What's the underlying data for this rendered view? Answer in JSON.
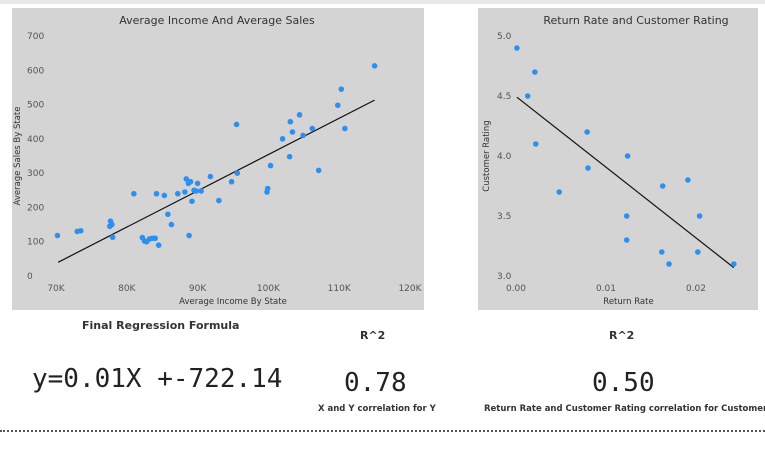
{
  "chart_data": [
    {
      "type": "scatter",
      "title": "Average Income And Average Sales",
      "xlabel": "Average Income By State",
      "ylabel": "Average Sales By State",
      "xlim": [
        70000,
        120000
      ],
      "ylim": [
        0,
        700
      ],
      "xticks": [
        70000,
        80000,
        90000,
        100000,
        110000,
        120000
      ],
      "xtick_labels": [
        "70K",
        "80K",
        "90K",
        "100K",
        "110K",
        "120K"
      ],
      "yticks": [
        0,
        100,
        200,
        300,
        400,
        500,
        600,
        700
      ],
      "ytick_labels": [
        "0",
        "100",
        "200",
        "300",
        "400",
        "500",
        "600",
        "700"
      ],
      "grid": false,
      "point_color": "#2f8ff0",
      "trendline": {
        "x": [
          70300,
          115000
        ],
        "y": [
          40,
          513
        ]
      },
      "points": [
        [
          70200,
          118
        ],
        [
          73000,
          130
        ],
        [
          73500,
          132
        ],
        [
          77600,
          145
        ],
        [
          77700,
          160
        ],
        [
          77900,
          150
        ],
        [
          78000,
          113
        ],
        [
          81000,
          240
        ],
        [
          82200,
          112
        ],
        [
          82500,
          102
        ],
        [
          82800,
          100
        ],
        [
          83200,
          108
        ],
        [
          83600,
          110
        ],
        [
          84000,
          110
        ],
        [
          84200,
          240
        ],
        [
          84500,
          90
        ],
        [
          85300,
          235
        ],
        [
          85800,
          180
        ],
        [
          86300,
          150
        ],
        [
          87200,
          240
        ],
        [
          88200,
          245
        ],
        [
          88400,
          283
        ],
        [
          88700,
          270
        ],
        [
          88800,
          118
        ],
        [
          89000,
          275
        ],
        [
          89200,
          218
        ],
        [
          89500,
          250
        ],
        [
          89800,
          248
        ],
        [
          90000,
          270
        ],
        [
          90500,
          248
        ],
        [
          91800,
          290
        ],
        [
          93000,
          220
        ],
        [
          94800,
          275
        ],
        [
          95500,
          442
        ],
        [
          95600,
          300
        ],
        [
          99800,
          245
        ],
        [
          99900,
          255
        ],
        [
          100300,
          322
        ],
        [
          102000,
          400
        ],
        [
          103000,
          348
        ],
        [
          103100,
          450
        ],
        [
          103400,
          420
        ],
        [
          104400,
          470
        ],
        [
          104900,
          410
        ],
        [
          106200,
          430
        ],
        [
          107100,
          308
        ],
        [
          109800,
          498
        ],
        [
          110300,
          545
        ],
        [
          110800,
          430
        ],
        [
          115000,
          613
        ]
      ]
    },
    {
      "type": "scatter",
      "title": "Return Rate and Customer Rating",
      "xlabel": "Return Rate",
      "ylabel": "Customer Rating",
      "xlim": [
        0,
        0.025
      ],
      "ylim": [
        3.0,
        5.0
      ],
      "xticks": [
        0,
        0.01,
        0.02
      ],
      "xtick_labels": [
        "0.00",
        "0.01",
        "0.02"
      ],
      "yticks": [
        3.0,
        3.5,
        4.0,
        4.5,
        5.0
      ],
      "ytick_labels": [
        "3.0",
        "3.5",
        "4.0",
        "4.5",
        "5.0"
      ],
      "grid": false,
      "point_color": "#2f8ff0",
      "trendline": {
        "x": [
          0.0001,
          0.0242
        ],
        "y": [
          4.49,
          3.07
        ]
      },
      "points": [
        [
          0.0001,
          4.9
        ],
        [
          0.0013,
          4.5
        ],
        [
          0.0021,
          4.7
        ],
        [
          0.0022,
          4.1
        ],
        [
          0.0048,
          3.7
        ],
        [
          0.0079,
          4.2
        ],
        [
          0.008,
          3.9
        ],
        [
          0.0124,
          4.0
        ],
        [
          0.0123,
          3.5
        ],
        [
          0.0123,
          3.3
        ],
        [
          0.0163,
          3.75
        ],
        [
          0.0162,
          3.2
        ],
        [
          0.017,
          3.1
        ],
        [
          0.0191,
          3.8
        ],
        [
          0.0204,
          3.5
        ],
        [
          0.0202,
          3.2
        ],
        [
          0.0242,
          3.1
        ]
      ]
    }
  ],
  "cards": {
    "formula_label": "Final Regression Formula",
    "formula_value": "y=0.01X +-722.14",
    "r2_left_label": "R^2",
    "r2_left_value": "0.78",
    "r2_left_caption": "X and Y correlation for Y",
    "r2_right_label": "R^2",
    "r2_right_value": "0.50",
    "r2_right_caption": "Return Rate and Customer Rating correlation for Customer ..."
  }
}
